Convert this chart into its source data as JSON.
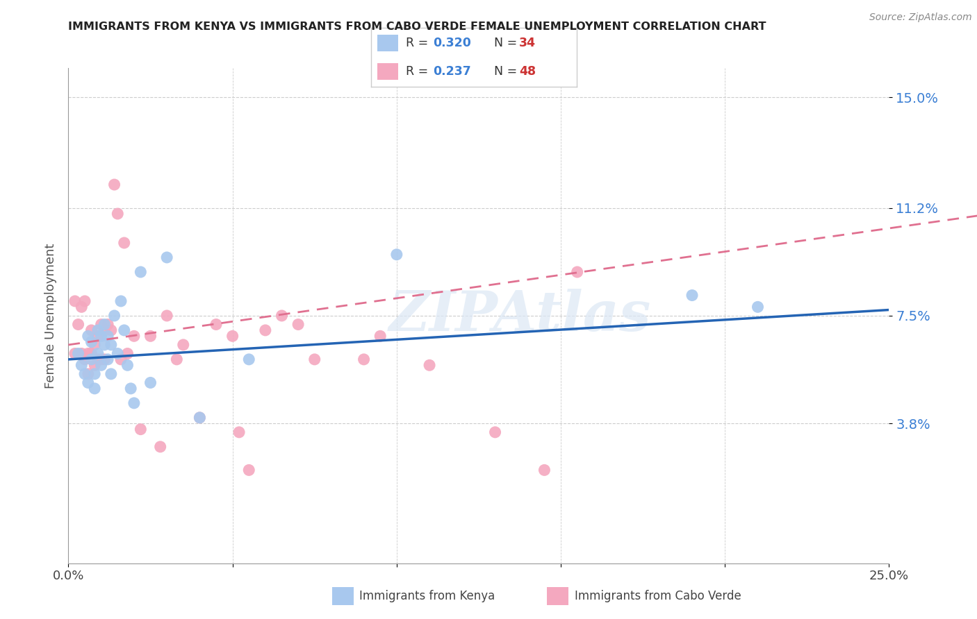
{
  "title": "IMMIGRANTS FROM KENYA VS IMMIGRANTS FROM CABO VERDE FEMALE UNEMPLOYMENT CORRELATION CHART",
  "source": "Source: ZipAtlas.com",
  "ylabel": "Female Unemployment",
  "xlim": [
    0.0,
    0.25
  ],
  "ylim": [
    -0.01,
    0.16
  ],
  "yticks": [
    0.038,
    0.075,
    0.112,
    0.15
  ],
  "ytick_labels": [
    "3.8%",
    "7.5%",
    "11.2%",
    "15.0%"
  ],
  "xticks": [
    0.0,
    0.05,
    0.1,
    0.15,
    0.2,
    0.25
  ],
  "xtick_labels": [
    "0.0%",
    "",
    "",
    "",
    "",
    "25.0%"
  ],
  "kenya_R": 0.32,
  "kenya_N": 34,
  "caboverde_R": 0.237,
  "caboverde_N": 48,
  "kenya_color": "#a8c8ee",
  "caboverde_color": "#f4a8bf",
  "kenya_line_color": "#2464b4",
  "caboverde_line_color": "#e07090",
  "background_color": "#ffffff",
  "watermark": "ZIPAtlas",
  "kenya_x": [
    0.003,
    0.004,
    0.005,
    0.006,
    0.006,
    0.007,
    0.007,
    0.008,
    0.008,
    0.009,
    0.009,
    0.01,
    0.01,
    0.011,
    0.011,
    0.012,
    0.012,
    0.013,
    0.013,
    0.014,
    0.015,
    0.016,
    0.017,
    0.018,
    0.019,
    0.02,
    0.022,
    0.025,
    0.03,
    0.055,
    0.1,
    0.19,
    0.21,
    0.04
  ],
  "kenya_y": [
    0.062,
    0.058,
    0.055,
    0.052,
    0.068,
    0.066,
    0.06,
    0.055,
    0.05,
    0.07,
    0.062,
    0.068,
    0.058,
    0.072,
    0.065,
    0.068,
    0.06,
    0.065,
    0.055,
    0.075,
    0.062,
    0.08,
    0.07,
    0.058,
    0.05,
    0.045,
    0.09,
    0.052,
    0.095,
    0.06,
    0.096,
    0.082,
    0.078,
    0.04
  ],
  "caboverde_x": [
    0.002,
    0.002,
    0.003,
    0.004,
    0.004,
    0.005,
    0.005,
    0.006,
    0.006,
    0.007,
    0.007,
    0.008,
    0.008,
    0.009,
    0.009,
    0.01,
    0.01,
    0.011,
    0.011,
    0.012,
    0.013,
    0.014,
    0.015,
    0.016,
    0.017,
    0.018,
    0.02,
    0.022,
    0.025,
    0.028,
    0.03,
    0.033,
    0.035,
    0.04,
    0.045,
    0.05,
    0.052,
    0.055,
    0.06,
    0.065,
    0.07,
    0.075,
    0.09,
    0.095,
    0.11,
    0.13,
    0.145,
    0.155
  ],
  "caboverde_y": [
    0.062,
    0.08,
    0.072,
    0.078,
    0.062,
    0.08,
    0.06,
    0.062,
    0.055,
    0.07,
    0.062,
    0.065,
    0.058,
    0.068,
    0.06,
    0.072,
    0.06,
    0.07,
    0.06,
    0.072,
    0.07,
    0.12,
    0.11,
    0.06,
    0.1,
    0.062,
    0.068,
    0.036,
    0.068,
    0.03,
    0.075,
    0.06,
    0.065,
    0.04,
    0.072,
    0.068,
    0.035,
    0.022,
    0.07,
    0.075,
    0.072,
    0.06,
    0.06,
    0.068,
    0.058,
    0.035,
    0.022,
    0.09
  ],
  "legend_text_color": "#3b7fd4",
  "legend_n_color": "#cc3333"
}
